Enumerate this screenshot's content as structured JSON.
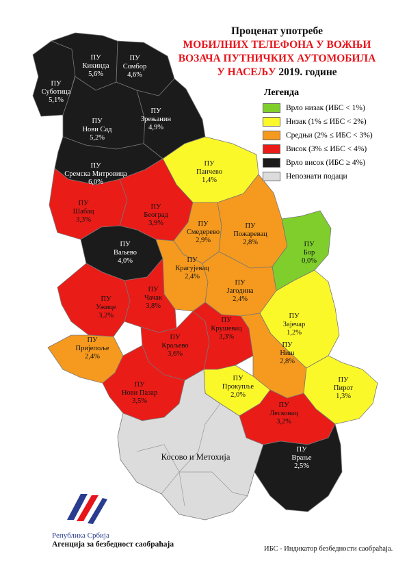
{
  "title": {
    "line1": "Проценат употребе",
    "line2": "МОБИЛНИХ ТЕЛЕФОНА У ВОЖЊИ",
    "line3": "ВОЗАЧА ПУТНИЧКИХ АУТОМОБИЛА",
    "line4_red": "У НАСЕЉУ",
    "line4_year": "2019. године"
  },
  "legend": {
    "title": "Легенда",
    "items": [
      {
        "label": "Врло низак (ИБС < 1%)",
        "color": "#7fce2b"
      },
      {
        "label": "Низак (1% ≤ ИБС < 2%)",
        "color": "#fbf82a"
      },
      {
        "label": "Средњи (2% ≤ ИБС < 3%)",
        "color": "#f59a1e"
      },
      {
        "label": "Висок (3% ≤ ИБС < 4%)",
        "color": "#ea1c18"
      },
      {
        "label": "Врло висок (ИБС ≥ 4%)",
        "color": "#1b1b1b"
      },
      {
        "label": "Непознати подаци",
        "color": "#dcdcdc"
      }
    ]
  },
  "regions": [
    {
      "prefix": "ПУ",
      "name": "Суботица",
      "value": "5,1%"
    },
    {
      "prefix": "ПУ",
      "name": "Кикинда",
      "value": "5,6%"
    },
    {
      "prefix": "ПУ",
      "name": "Сомбор",
      "value": "4,6%"
    },
    {
      "prefix": "ПУ",
      "name": "Нови Сад",
      "value": "5,2%"
    },
    {
      "prefix": "ПУ",
      "name": "Зрењанин",
      "value": "4,9%"
    },
    {
      "prefix": "ПУ",
      "name": "Сремска Митровица",
      "value": "6,0%"
    },
    {
      "prefix": "ПУ",
      "name": "Панчево",
      "value": "1,4%"
    },
    {
      "prefix": "ПУ",
      "name": "Шабац",
      "value": "3,3%"
    },
    {
      "prefix": "ПУ",
      "name": "Београд",
      "value": "3,9%"
    },
    {
      "prefix": "ПУ",
      "name": "Смедерево",
      "value": "2,9%"
    },
    {
      "prefix": "ПУ",
      "name": "Пожаревац",
      "value": "2,8%"
    },
    {
      "prefix": "ПУ",
      "name": "Бор",
      "value": "0,0%"
    },
    {
      "prefix": "ПУ",
      "name": "Ваљево",
      "value": "4,0%"
    },
    {
      "prefix": "ПУ",
      "name": "Крагујевац",
      "value": "2,4%"
    },
    {
      "prefix": "ПУ",
      "name": "Јагодина",
      "value": "2,4%"
    },
    {
      "prefix": "ПУ",
      "name": "Ужице",
      "value": "3,2%"
    },
    {
      "prefix": "ПУ",
      "name": "Чачак",
      "value": "3,8%"
    },
    {
      "prefix": "ПУ",
      "name": "Зајечар",
      "value": "1,2%"
    },
    {
      "prefix": "ПУ",
      "name": "Краљево",
      "value": "3,6%"
    },
    {
      "prefix": "ПУ",
      "name": "Крушевац",
      "value": "3,3%"
    },
    {
      "prefix": "ПУ",
      "name": "Пријепоље",
      "value": "2,4%"
    },
    {
      "prefix": "ПУ",
      "name": "Ниш",
      "value": "2,8%"
    },
    {
      "prefix": "ПУ",
      "name": "Нови Пазар",
      "value": "3,5%"
    },
    {
      "prefix": "ПУ",
      "name": "Прокупље",
      "value": "2,0%"
    },
    {
      "prefix": "ПУ",
      "name": "Пирот",
      "value": "1,3%"
    },
    {
      "prefix": "ПУ",
      "name": "Лесковац",
      "value": "3,2%"
    },
    {
      "prefix": "ПУ",
      "name": "Врање",
      "value": "2,5%"
    }
  ],
  "kosovo_label": "Косово и Метохија",
  "footer": {
    "note": "ИБС - Индикатор безбедности саобраћаја.",
    "org_line1": "Република Србија",
    "org_line2": "Агенција за безбедност саобраћаја"
  },
  "colors": {
    "very_high": "#1b1b1b",
    "high": "#ea1c18",
    "medium": "#f59a1e",
    "low": "#fbf82a",
    "very_low": "#7fce2b",
    "unknown": "#dcdcdc",
    "border": "#777777"
  }
}
